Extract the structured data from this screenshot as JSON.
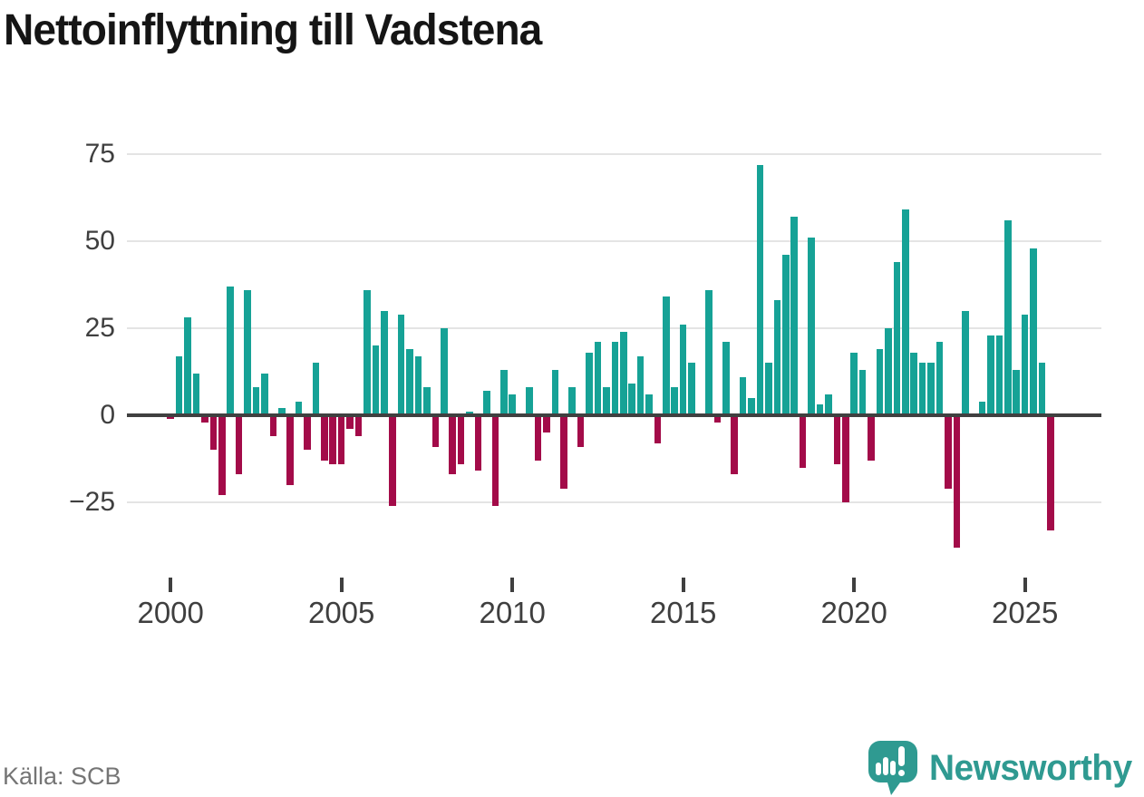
{
  "title": "Nettoinflyttning till Vadstena",
  "source": "Källa: SCB",
  "brand": {
    "name": "Newsworthy",
    "logo_icon": "speech-bubble-bar-chart-icon",
    "color": "#2f9a91"
  },
  "colors": {
    "positive": "#16a296",
    "negative": "#a30b49",
    "axis": "#404040",
    "grid": "#e4e4e4",
    "tick_text": "#3f3f3f",
    "title_text": "#151515",
    "source_text": "#757575"
  },
  "chart_data": {
    "type": "bar",
    "title": "Nettoinflyttning till Vadstena",
    "frequency": "quarterly",
    "start": "2000-Q1",
    "end": "2025-Q4",
    "grid": "horizontal",
    "legend": "none",
    "ylim": [
      -42,
      80
    ],
    "yticks": [
      {
        "value": 75,
        "label": "75"
      },
      {
        "value": 50,
        "label": "50"
      },
      {
        "value": 25,
        "label": "25"
      },
      {
        "value": 0,
        "label": "0"
      },
      {
        "value": -25,
        "label": "−25"
      }
    ],
    "xticks": [
      {
        "year": 2000,
        "label": "2000"
      },
      {
        "year": 2005,
        "label": "2005"
      },
      {
        "year": 2010,
        "label": "2010"
      },
      {
        "year": 2015,
        "label": "2015"
      },
      {
        "year": 2020,
        "label": "2020"
      },
      {
        "year": 2025,
        "label": "2025"
      }
    ],
    "values": [
      -1,
      17,
      28,
      12,
      -2,
      -10,
      -23,
      37,
      -17,
      36,
      8,
      12,
      -6,
      2,
      -20,
      4,
      -10,
      15,
      -13,
      -14,
      -14,
      -4,
      -6,
      36,
      20,
      30,
      -26,
      29,
      19,
      17,
      8,
      -9,
      25,
      -17,
      -14,
      1,
      -16,
      7,
      -26,
      13,
      6,
      0,
      8,
      -13,
      -5,
      13,
      -21,
      8,
      -9,
      18,
      21,
      8,
      21,
      24,
      9,
      17,
      6,
      -8,
      34,
      8,
      26,
      15,
      0,
      36,
      -2,
      21,
      -17,
      11,
      5,
      72,
      15,
      33,
      46,
      57,
      -15,
      51,
      3,
      6,
      -14,
      -25,
      18,
      13,
      -13,
      19,
      25,
      44,
      59,
      18,
      15,
      15,
      21,
      -21,
      -38,
      30,
      0,
      4,
      23,
      23,
      56,
      13,
      29,
      48,
      15,
      -33
    ]
  }
}
